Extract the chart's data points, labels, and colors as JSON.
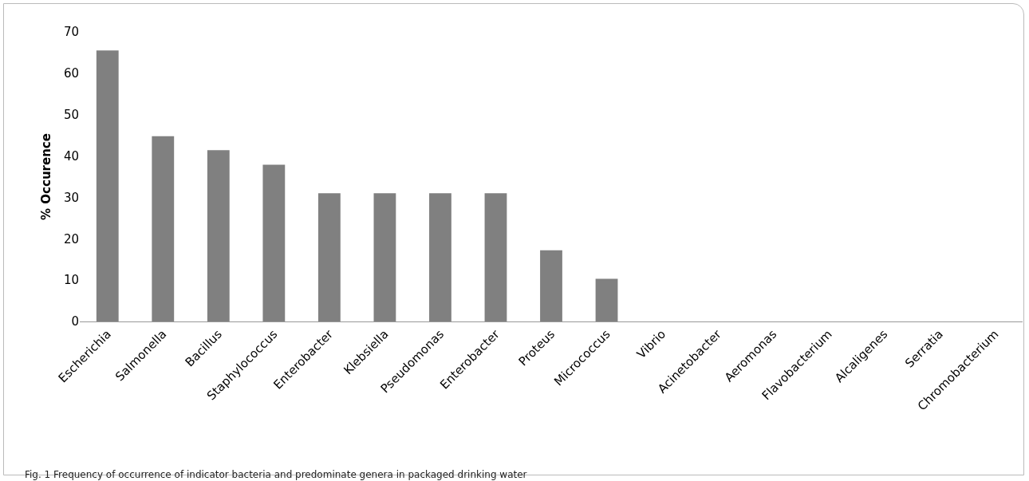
{
  "chart_data": {
    "type": "bar",
    "ylabel": "% Occurence",
    "categories": [
      "Escherichia",
      "Salmonella",
      "Bacillus",
      "Staphylococcus",
      "Enterobacter",
      "Klebsiella",
      "Pseudomonas",
      "Enterobacter",
      "Proteus",
      "Micrococcus",
      "Vibrio",
      "Acinetobacter",
      "Aeromonas",
      "Flavobacterium",
      "Alcaligenes",
      "Serratia",
      "Chromobacterium"
    ],
    "values": [
      65.5,
      44.8,
      41.4,
      37.9,
      31,
      31,
      31,
      31,
      17.2,
      10.3,
      0,
      0,
      0,
      0,
      0,
      0,
      0
    ],
    "color": "#808080",
    "ylim": [
      0,
      70
    ],
    "yticks": [
      0,
      10,
      20,
      30,
      40,
      50,
      60,
      70
    ],
    "grid": false,
    "annotations": [
      "Fig. 1 Frequency of occurrence of indicator bacteria and predominate genera in packaged drinking water"
    ]
  }
}
